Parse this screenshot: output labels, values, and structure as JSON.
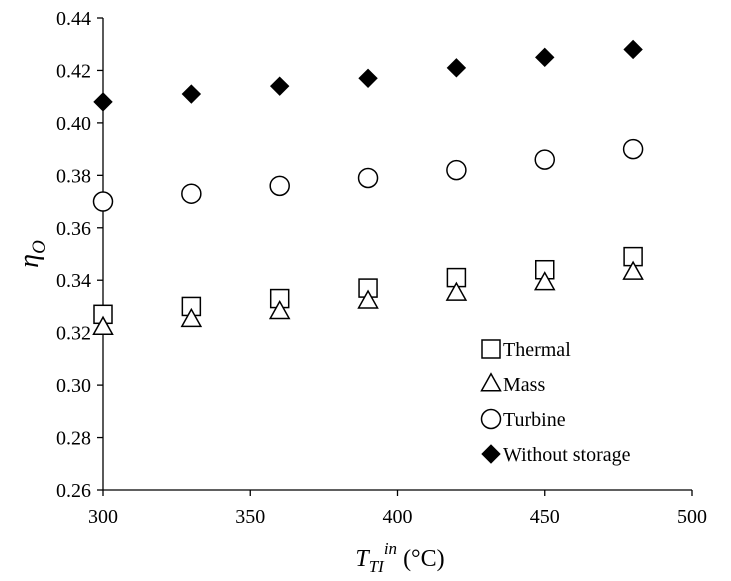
{
  "chart_data": {
    "type": "scatter",
    "x_axis": {
      "range": [
        300,
        500
      ],
      "ticks": [
        "300",
        "350",
        "400",
        "450",
        "500"
      ],
      "label": {
        "main": "T",
        "subscript": "TI",
        "superscript": "in",
        "unit": "(°C)"
      }
    },
    "y_axis": {
      "range": [
        0.26,
        0.44
      ],
      "ticks": [
        "0.26",
        "0.28",
        "0.30",
        "0.32",
        "0.34",
        "0.36",
        "0.38",
        "0.40",
        "0.42",
        "0.44"
      ],
      "label": {
        "main": "η",
        "subscript": "O"
      }
    },
    "grid": false,
    "legend_position": "bottom-right",
    "series": [
      {
        "name": "Thermal",
        "marker": "open-square",
        "x": [
          300,
          330,
          360,
          390,
          420,
          450,
          480
        ],
        "y": [
          0.327,
          0.33,
          0.333,
          0.337,
          0.341,
          0.344,
          0.349
        ]
      },
      {
        "name": "Mass",
        "marker": "open-triangle",
        "x": [
          300,
          330,
          360,
          390,
          420,
          450,
          480
        ],
        "y": [
          0.322,
          0.325,
          0.328,
          0.332,
          0.335,
          0.339,
          0.343
        ]
      },
      {
        "name": "Turbine",
        "marker": "open-circle",
        "x": [
          300,
          330,
          360,
          390,
          420,
          450,
          480
        ],
        "y": [
          0.37,
          0.373,
          0.376,
          0.379,
          0.382,
          0.386,
          0.39
        ]
      },
      {
        "name": "Without storage",
        "marker": "filled-diamond",
        "x": [
          300,
          330,
          360,
          390,
          420,
          450,
          480
        ],
        "y": [
          0.408,
          0.411,
          0.414,
          0.417,
          0.421,
          0.425,
          0.428
        ]
      }
    ],
    "colors": {
      "marker": "#000000",
      "background": "#ffffff"
    }
  }
}
